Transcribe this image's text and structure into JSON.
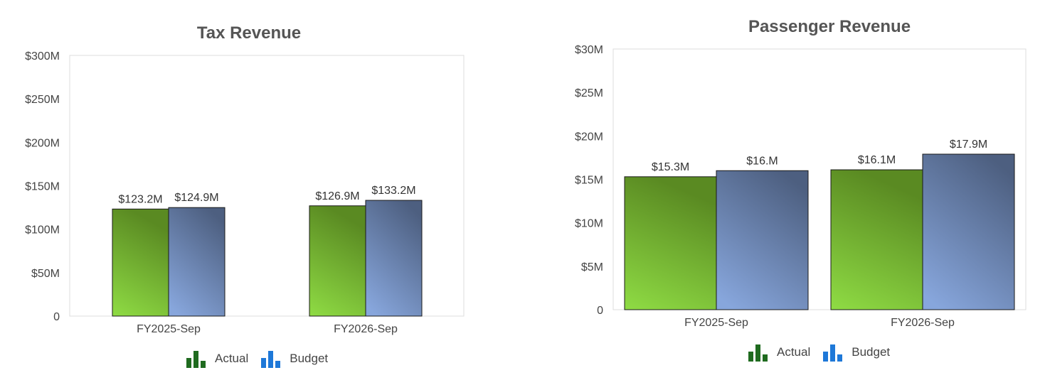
{
  "chart_data": [
    {
      "type": "bar",
      "title": "Tax Revenue",
      "categories": [
        "FY2025-Sep",
        "FY2026-Sep"
      ],
      "series": [
        {
          "name": "Actual",
          "values": [
            123.2,
            126.9
          ],
          "labels": [
            "$123.2M",
            "$126.9M"
          ]
        },
        {
          "name": "Budget",
          "values": [
            124.9,
            133.2
          ],
          "labels": [
            "$124.9M",
            "$133.2M"
          ]
        }
      ],
      "ylim": [
        0,
        300
      ],
      "yticks": [
        {
          "value": 0,
          "label": "0"
        },
        {
          "value": 50,
          "label": "$50M"
        },
        {
          "value": 100,
          "label": "$100M"
        },
        {
          "value": 150,
          "label": "$150M"
        },
        {
          "value": 200,
          "label": "$200M"
        },
        {
          "value": 250,
          "label": "$250M"
        },
        {
          "value": 300,
          "label": "$300M"
        }
      ],
      "grid": false,
      "legend": "bottom"
    },
    {
      "type": "bar",
      "title": "Passenger Revenue",
      "categories": [
        "FY2025-Sep",
        "FY2026-Sep"
      ],
      "series": [
        {
          "name": "Actual",
          "values": [
            15.3,
            16.1
          ],
          "labels": [
            "$15.3M",
            "$16.1M"
          ]
        },
        {
          "name": "Budget",
          "values": [
            16.0,
            17.9
          ],
          "labels": [
            "$16.M",
            "$17.9M"
          ]
        }
      ],
      "ylim": [
        0,
        30
      ],
      "yticks": [
        {
          "value": 0,
          "label": "0"
        },
        {
          "value": 5,
          "label": "$5M"
        },
        {
          "value": 10,
          "label": "$10M"
        },
        {
          "value": 15,
          "label": "$15M"
        },
        {
          "value": 20,
          "label": "$20M"
        },
        {
          "value": 25,
          "label": "$25M"
        },
        {
          "value": 30,
          "label": "$30M"
        }
      ],
      "grid": false,
      "legend": "bottom"
    }
  ],
  "legend": {
    "actual_label": "Actual",
    "budget_label": "Budget"
  },
  "colors": {
    "actual_top": "#5a8a22",
    "actual_bottom": "#8fdc44",
    "budget_top": "#4d5f80",
    "budget_bottom": "#87a6dc",
    "title": "#555555",
    "axis_text": "#444444"
  }
}
